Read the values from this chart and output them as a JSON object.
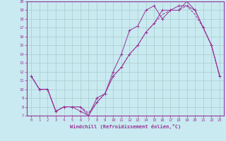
{
  "title": "",
  "xlabel": "Windchill (Refroidissement éolien,°C)",
  "ylabel": "",
  "bg_color": "#c8eaf0",
  "line_color": "#993399",
  "grid_color": "#aacccc",
  "xlim": [
    -0.5,
    23.5
  ],
  "ylim": [
    7,
    20
  ],
  "xticks": [
    0,
    1,
    2,
    3,
    4,
    5,
    6,
    7,
    8,
    9,
    10,
    11,
    12,
    13,
    14,
    15,
    16,
    17,
    18,
    19,
    20,
    21,
    22,
    23
  ],
  "yticks": [
    7,
    8,
    9,
    10,
    11,
    12,
    13,
    14,
    15,
    16,
    17,
    18,
    19,
    20
  ],
  "line1_x": [
    0,
    1,
    2,
    3,
    4,
    5,
    6,
    7,
    8,
    9,
    10,
    11,
    12,
    13,
    14,
    15,
    16,
    17,
    18,
    19,
    20,
    21,
    22,
    23
  ],
  "line1_y": [
    11.5,
    10,
    10,
    7.5,
    8,
    8,
    7.5,
    7,
    9,
    9.5,
    12,
    14,
    16.7,
    17.2,
    19,
    19.5,
    18,
    19,
    19.5,
    19.5,
    19,
    17,
    15,
    11.5
  ],
  "line2_x": [
    0,
    1,
    2,
    3,
    4,
    5,
    6,
    7,
    8,
    9,
    10,
    11,
    12,
    13,
    14,
    15,
    16,
    17,
    18,
    19,
    20,
    21,
    22,
    23
  ],
  "line2_y": [
    11.5,
    10,
    10,
    7.5,
    8,
    8,
    8,
    7,
    8.5,
    9.5,
    11.5,
    12.5,
    14,
    15,
    16.5,
    17.5,
    19,
    19,
    19,
    20,
    19,
    17,
    15,
    11.5
  ],
  "line3_x": [
    0,
    1,
    2,
    3,
    4,
    5,
    6,
    7,
    8,
    9,
    10,
    11,
    12,
    13,
    14,
    15,
    16,
    17,
    18,
    19,
    20,
    21,
    22,
    23
  ],
  "line3_y": [
    11.5,
    10,
    10,
    7.5,
    8,
    8,
    8,
    7.3,
    8.5,
    9.5,
    11.5,
    12.5,
    14,
    15,
    16.5,
    17.5,
    18.5,
    19,
    19,
    19.5,
    18.5,
    17,
    15,
    11.5
  ]
}
